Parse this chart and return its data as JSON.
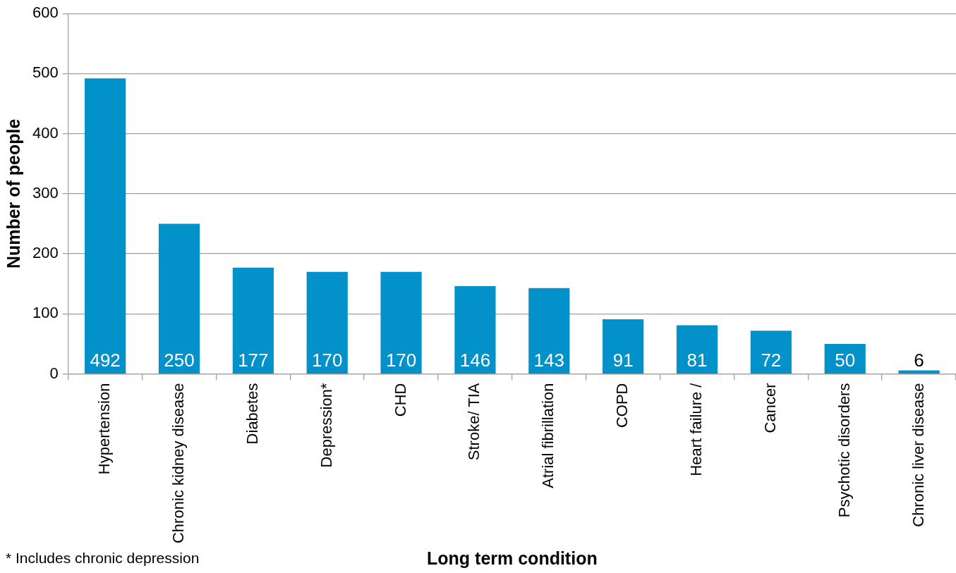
{
  "chart_data": {
    "type": "bar",
    "categories": [
      "Hypertension",
      "Chronic kidney disease",
      "Diabetes",
      "Depression*",
      "CHD",
      "Stroke/ TIA",
      "Atrial fibrillation",
      "COPD",
      "Heart failure /",
      "Cancer",
      "Psychotic disorders",
      "Chronic liver disease"
    ],
    "values": [
      492,
      250,
      177,
      170,
      170,
      146,
      143,
      91,
      81,
      72,
      50,
      6
    ],
    "color": "#0391c9",
    "xlabel": "Long term condition",
    "ylabel": "Number of people",
    "ylim": [
      0,
      600
    ],
    "yticks": [
      0,
      100,
      200,
      300,
      400,
      500,
      600
    ],
    "grid": "y",
    "data_labels": true,
    "annotations": [
      "* Includes chronic depression"
    ]
  }
}
